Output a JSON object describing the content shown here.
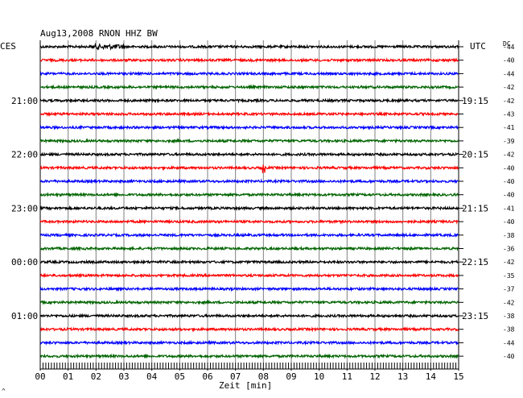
{
  "chart_data": {
    "type": "line",
    "title": "Aug13,2008   RNON HHZ BW",
    "left_axis_label": "CES",
    "right_axis_label": "UTC",
    "dc_label": "DC",
    "xlabel": "Zeit [min]",
    "xlim": [
      0,
      15
    ],
    "x_ticks": [
      "00",
      "01",
      "02",
      "03",
      "04",
      "05",
      "06",
      "07",
      "08",
      "09",
      "10",
      "11",
      "12",
      "13",
      "14",
      "15"
    ],
    "row_count": 24,
    "row_colors": [
      "#000000",
      "#ff0000",
      "#0000ff",
      "#006400"
    ],
    "left_time_labels": [
      {
        "row": 4,
        "label": "21:00"
      },
      {
        "row": 8,
        "label": "22:00"
      },
      {
        "row": 12,
        "label": "23:00"
      },
      {
        "row": 16,
        "label": "00:00"
      },
      {
        "row": 20,
        "label": "01:00"
      }
    ],
    "right_time_labels": [
      {
        "row": 4,
        "label": "19:15"
      },
      {
        "row": 8,
        "label": "20:15"
      },
      {
        "row": 12,
        "label": "21:15"
      },
      {
        "row": 16,
        "label": "22:15"
      },
      {
        "row": 20,
        "label": "23:15"
      }
    ],
    "dc_offsets": [
      "-44",
      "-40",
      "-44",
      "-42",
      "-42",
      "-43",
      "-41",
      "-39",
      "-42",
      "-40",
      "-40",
      "-40",
      "-41",
      "-40",
      "-38",
      "-36",
      "-42",
      "-35",
      "-37",
      "-42",
      "-38",
      "-38",
      "-44",
      "-40"
    ],
    "events": [
      {
        "row": 0,
        "x_start": 1.8,
        "x_end": 3.0,
        "amplitude": "high"
      },
      {
        "row": 9,
        "x_start": 7.95,
        "x_end": 8.05,
        "amplitude": "spike"
      }
    ],
    "footnote": "^"
  }
}
